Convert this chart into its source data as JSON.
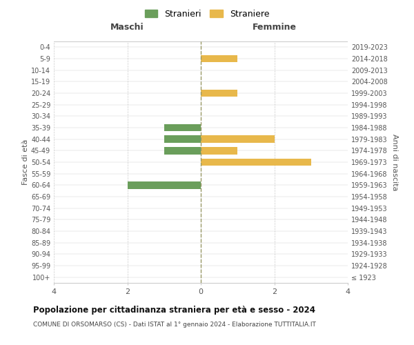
{
  "age_groups": [
    "100+",
    "95-99",
    "90-94",
    "85-89",
    "80-84",
    "75-79",
    "70-74",
    "65-69",
    "60-64",
    "55-59",
    "50-54",
    "45-49",
    "40-44",
    "35-39",
    "30-34",
    "25-29",
    "20-24",
    "15-19",
    "10-14",
    "5-9",
    "0-4"
  ],
  "birth_years": [
    "≤ 1923",
    "1924-1928",
    "1929-1933",
    "1934-1938",
    "1939-1943",
    "1944-1948",
    "1949-1953",
    "1954-1958",
    "1959-1963",
    "1964-1968",
    "1969-1973",
    "1974-1978",
    "1979-1983",
    "1984-1988",
    "1989-1993",
    "1994-1998",
    "1999-2003",
    "2004-2008",
    "2009-2013",
    "2014-2018",
    "2019-2023"
  ],
  "maschi_stranieri": [
    0,
    0,
    0,
    0,
    0,
    0,
    0,
    0,
    2,
    0,
    0,
    1,
    1,
    1,
    0,
    0,
    0,
    0,
    0,
    0,
    0
  ],
  "femmine_straniere": [
    0,
    0,
    0,
    0,
    0,
    0,
    0,
    0,
    0,
    0,
    3,
    1,
    2,
    0,
    0,
    0,
    1,
    0,
    0,
    1,
    0
  ],
  "color_maschi": "#6a9e5b",
  "color_femmine": "#e8b84b",
  "title": "Popolazione per cittadinanza straniera per età e sesso - 2024",
  "subtitle": "COMUNE DI ORSOMARSO (CS) - Dati ISTAT al 1° gennaio 2024 - Elaborazione TUTTITALIA.IT",
  "legend_maschi": "Stranieri",
  "legend_femmine": "Straniere",
  "xlabel_left": "Maschi",
  "xlabel_right": "Femmine",
  "ylabel_left": "Fasce di età",
  "ylabel_right": "Anni di nascita",
  "xlim": 4,
  "background_color": "#ffffff",
  "grid_color": "#cccccc",
  "center_line_color": "#999966"
}
